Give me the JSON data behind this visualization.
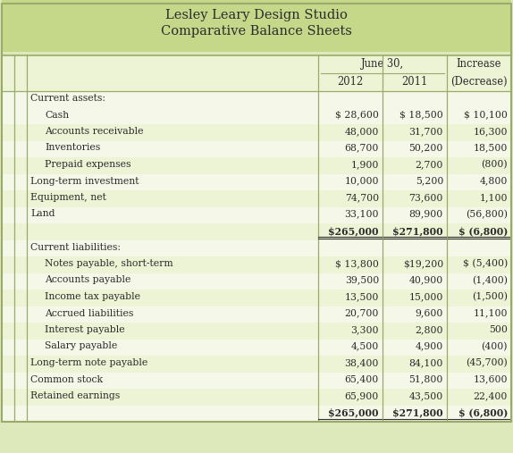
{
  "title_line1": "Lesley Leary Design Studio",
  "title_line2": "Comparative Balance Sheets",
  "header_bg": "#c5d88a",
  "rows": [
    {
      "label": "Current assets:",
      "indent": 0,
      "val2012": "",
      "val2011": "",
      "valinc": "",
      "bold": false,
      "shaded": false,
      "double_line": false
    },
    {
      "label": "Cash",
      "indent": 1,
      "val2012": "$ 28,600",
      "val2011": "$ 18,500",
      "valinc": "$ 10,100",
      "bold": false,
      "shaded": false,
      "double_line": false
    },
    {
      "label": "Accounts receivable",
      "indent": 1,
      "val2012": "48,000",
      "val2011": "31,700",
      "valinc": "16,300",
      "bold": false,
      "shaded": true,
      "double_line": false
    },
    {
      "label": "Inventories",
      "indent": 1,
      "val2012": "68,700",
      "val2011": "50,200",
      "valinc": "18,500",
      "bold": false,
      "shaded": false,
      "double_line": false
    },
    {
      "label": "Prepaid expenses",
      "indent": 1,
      "val2012": "1,900",
      "val2011": "2,700",
      "valinc": "(800)",
      "bold": false,
      "shaded": true,
      "double_line": false
    },
    {
      "label": "Long-term investment",
      "indent": 0,
      "val2012": "10,000",
      "val2011": "5,200",
      "valinc": "4,800",
      "bold": false,
      "shaded": false,
      "double_line": false
    },
    {
      "label": "Equipment, net",
      "indent": 0,
      "val2012": "74,700",
      "val2011": "73,600",
      "valinc": "1,100",
      "bold": false,
      "shaded": true,
      "double_line": false
    },
    {
      "label": "Land",
      "indent": 0,
      "val2012": "33,100",
      "val2011": "89,900",
      "valinc": "(56,800)",
      "bold": false,
      "shaded": false,
      "double_line": false
    },
    {
      "label": "",
      "indent": 0,
      "val2012": "$265,000",
      "val2011": "$271,800",
      "valinc": "$ (6,800)",
      "bold": true,
      "shaded": true,
      "double_line": true
    },
    {
      "label": "Current liabilities:",
      "indent": 0,
      "val2012": "",
      "val2011": "",
      "valinc": "",
      "bold": false,
      "shaded": false,
      "double_line": false
    },
    {
      "label": "Notes payable, short-term",
      "indent": 1,
      "val2012": "$ 13,800",
      "val2011": "$19,200",
      "valinc": "$ (5,400)",
      "bold": false,
      "shaded": true,
      "double_line": false
    },
    {
      "label": "Accounts payable",
      "indent": 1,
      "val2012": "39,500",
      "val2011": "40,900",
      "valinc": "(1,400)",
      "bold": false,
      "shaded": false,
      "double_line": false
    },
    {
      "label": "Income tax payable",
      "indent": 1,
      "val2012": "13,500",
      "val2011": "15,000",
      "valinc": "(1,500)",
      "bold": false,
      "shaded": true,
      "double_line": false
    },
    {
      "label": "Accrued liabilities",
      "indent": 1,
      "val2012": "20,700",
      "val2011": "9,600",
      "valinc": "11,100",
      "bold": false,
      "shaded": false,
      "double_line": false
    },
    {
      "label": "Interest payable",
      "indent": 1,
      "val2012": "3,300",
      "val2011": "2,800",
      "valinc": "500",
      "bold": false,
      "shaded": true,
      "double_line": false
    },
    {
      "label": "Salary payable",
      "indent": 1,
      "val2012": "4,500",
      "val2011": "4,900",
      "valinc": "(400)",
      "bold": false,
      "shaded": false,
      "double_line": false
    },
    {
      "label": "Long-term note payable",
      "indent": 0,
      "val2012": "38,400",
      "val2011": "84,100",
      "valinc": "(45,700)",
      "bold": false,
      "shaded": true,
      "double_line": false
    },
    {
      "label": "Common stock",
      "indent": 0,
      "val2012": "65,400",
      "val2011": "51,800",
      "valinc": "13,600",
      "bold": false,
      "shaded": false,
      "double_line": false
    },
    {
      "label": "Retained earnings",
      "indent": 0,
      "val2012": "65,900",
      "val2011": "43,500",
      "valinc": "22,400",
      "bold": false,
      "shaded": true,
      "double_line": false
    },
    {
      "label": "",
      "indent": 0,
      "val2012": "$265,000",
      "val2011": "$271,800",
      "valinc": "$ (6,800)",
      "bold": true,
      "shaded": false,
      "double_line": true
    }
  ],
  "shaded_color": "#dde8bb",
  "light_shaded": "#edf3d5",
  "white_color": "#f5f8e8",
  "text_color": "#2b2b2b",
  "border_color": "#9aaa6a",
  "font_size": 7.8,
  "title_font_size": 10.5
}
